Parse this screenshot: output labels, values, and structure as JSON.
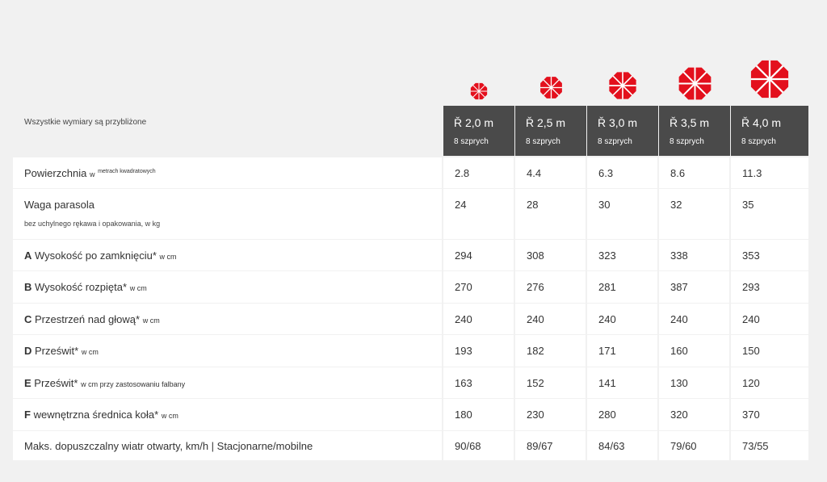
{
  "note": "Wszystkie wymiary są przybliżone",
  "brand_color": "#e3101d",
  "icon_name": "umbrella-canopy-icon",
  "columns": [
    {
      "size": "Ř 2,0 m",
      "spokes": "8 szprych"
    },
    {
      "size": "Ř 2,5 m",
      "spokes": "8 szprych"
    },
    {
      "size": "Ř 3,0 m",
      "spokes": "8 szprych"
    },
    {
      "size": "Ř 3,5 m",
      "spokes": "8 szprych"
    },
    {
      "size": "Ř 4,0 m",
      "spokes": "8 szprych"
    }
  ],
  "rows": [
    {
      "letter": "",
      "label": "Powierzchnia",
      "unit": "w",
      "sup": "metrach kwadratowych",
      "sub": "",
      "values": [
        "2.8",
        "4.4",
        "6.3",
        "8.6",
        "11.3"
      ]
    },
    {
      "letter": "",
      "label": "Waga parasola",
      "unit": "",
      "sup": "",
      "sub": "bez uchylnego rękawa i opakowania, w kg",
      "values": [
        "24",
        "28",
        "30",
        "32",
        "35"
      ]
    },
    {
      "letter": "A",
      "label": "Wysokość po zamknięciu*",
      "unit": "w cm",
      "sup": "",
      "sub": "",
      "values": [
        "294",
        "308",
        "323",
        "338",
        "353"
      ]
    },
    {
      "letter": "B",
      "label": "Wysokość rozpięta*",
      "unit": "w cm",
      "sup": "",
      "sub": "",
      "values": [
        "270",
        "276",
        "281",
        "387",
        "293"
      ]
    },
    {
      "letter": "C",
      "label": "Przestrzeń nad głową*",
      "unit": "w cm",
      "sup": "",
      "sub": "",
      "values": [
        "240",
        "240",
        "240",
        "240",
        "240"
      ]
    },
    {
      "letter": "D",
      "label": "Prześwit*",
      "unit": "w cm",
      "sup": "",
      "sub": "",
      "values": [
        "193",
        "182",
        "171",
        "160",
        "150"
      ]
    },
    {
      "letter": "E",
      "label": "Prześwit*",
      "unit": "w cm przy zastosowaniu falbany",
      "sup": "",
      "sub": "",
      "values": [
        "163",
        "152",
        "141",
        "130",
        "120"
      ]
    },
    {
      "letter": "F",
      "label": "wewnętrzna średnica koła*",
      "unit": "w cm",
      "sup": "",
      "sub": "",
      "values": [
        "180",
        "230",
        "280",
        "320",
        "370"
      ]
    },
    {
      "letter": "",
      "label": "Maks. dopuszczalny wiatr otwarty, km/h | Stacjonarne/mobilne",
      "unit": "",
      "sup": "",
      "sub": "",
      "values": [
        "90/68",
        "89/67",
        "84/63",
        "79/60",
        "73/55"
      ]
    }
  ]
}
